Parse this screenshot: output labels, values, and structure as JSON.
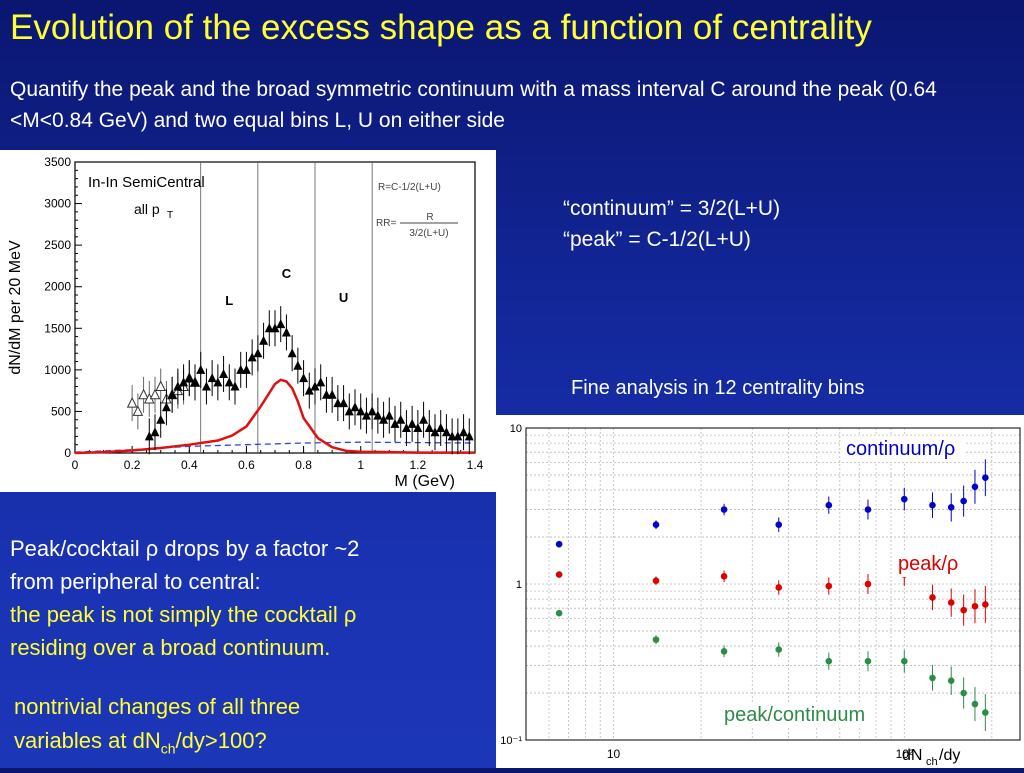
{
  "slide": {
    "title": "Evolution of the excess shape as a function of centrality",
    "intro": "Quantify the peak and the broad symmetric continuum with a mass interval C around the peak (0.64 <M<0.84 GeV) and two equal bins L, U on either side",
    "definitions": {
      "continuum": "“continuum” = 3/2(L+U)",
      "peak": "“peak” = C-1/2(L+U)"
    },
    "fine_analysis": "Fine analysis in 12 centrality bins",
    "para1": {
      "line1": "Peak/cocktail ρ drops by a factor ~2",
      "line2": "from peripheral to central:",
      "line3": "the peak is not simply the cocktail ρ",
      "line4": "residing over a broad continuum."
    },
    "para2": {
      "line1": "nontrivial changes of all three",
      "line2_pre": "variables at dN",
      "line2_sub": "ch",
      "line2_post": "/dy>100?"
    }
  },
  "chart_data": [
    {
      "type": "scatter",
      "title": "",
      "label_main": "In-In SemiCentral",
      "label_sub": "all p",
      "label_sub_subscript": "T",
      "xlabel": "M (GeV)",
      "ylabel": "dN/dM per 20 MeV",
      "xlim": [
        0,
        1.4
      ],
      "ylim": [
        0,
        3500
      ],
      "xticks": [
        "0",
        "0.2",
        "0.4",
        "0.6",
        "0.8",
        "1",
        "1.2",
        "1.4"
      ],
      "yticks": [
        "0",
        "500",
        "1000",
        "1500",
        "2000",
        "2500",
        "3000",
        "3500"
      ],
      "regions": [
        "L",
        "C",
        "U"
      ],
      "region_bounds": [
        0.44,
        0.64,
        0.84,
        1.04
      ],
      "formula_R": "R=C-1/2(L+U)",
      "formula_RR_lhs": "RR=",
      "formula_RR_num": "R",
      "formula_RR_den": "3/2(L+U)",
      "series": [
        {
          "marker": "filled-triangle",
          "x": [
            0.26,
            0.28,
            0.3,
            0.32,
            0.34,
            0.36,
            0.38,
            0.4,
            0.42,
            0.44,
            0.46,
            0.48,
            0.5,
            0.52,
            0.54,
            0.56,
            0.58,
            0.6,
            0.62,
            0.64,
            0.66,
            0.68,
            0.7,
            0.72,
            0.74,
            0.76,
            0.78,
            0.8,
            0.82,
            0.84,
            0.86,
            0.88,
            0.9,
            0.92,
            0.94,
            0.96,
            0.98,
            1.0,
            1.02,
            1.04,
            1.06,
            1.08,
            1.1,
            1.12,
            1.14,
            1.16,
            1.18,
            1.2,
            1.22,
            1.24,
            1.26,
            1.28,
            1.3,
            1.32,
            1.34,
            1.36,
            1.38
          ],
          "y": [
            200,
            250,
            400,
            550,
            700,
            800,
            850,
            900,
            850,
            1000,
            800,
            900,
            850,
            950,
            850,
            800,
            1000,
            1000,
            1150,
            1200,
            1350,
            1500,
            1500,
            1550,
            1450,
            1200,
            1050,
            900,
            750,
            800,
            850,
            700,
            700,
            600,
            600,
            500,
            550,
            500,
            450,
            500,
            450,
            400,
            450,
            350,
            400,
            300,
            350,
            300,
            400,
            300,
            250,
            300,
            250,
            200,
            200,
            250,
            200
          ]
        },
        {
          "marker": "open-triangle",
          "x": [
            0.2,
            0.22,
            0.24,
            0.26,
            0.28,
            0.3,
            0.32,
            0.34,
            0.36,
            0.38,
            0.4,
            0.42
          ],
          "y": [
            600,
            500,
            700,
            650,
            700,
            800,
            650,
            700,
            750,
            800,
            900,
            850
          ]
        },
        {
          "name": "",
          "marker": "red-line",
          "x": [
            0,
            0.1,
            0.2,
            0.3,
            0.4,
            0.5,
            0.55,
            0.6,
            0.65,
            0.7,
            0.72,
            0.74,
            0.76,
            0.78,
            0.8,
            0.85,
            0.9,
            0.95,
            1.0,
            1.1,
            1.2,
            1.3,
            1.4
          ],
          "y": [
            0,
            10,
            30,
            60,
            100,
            150,
            210,
            320,
            560,
            830,
            880,
            860,
            780,
            620,
            420,
            180,
            70,
            25,
            15,
            10,
            5,
            5,
            5
          ]
        },
        {
          "name": "",
          "marker": "blue-dashed",
          "x": [
            0,
            0.2,
            0.4,
            0.6,
            0.8,
            1.0,
            1.2,
            1.4
          ],
          "y": [
            10,
            40,
            80,
            100,
            120,
            130,
            125,
            120
          ]
        }
      ]
    },
    {
      "type": "scatter",
      "title": "",
      "xlabel_pre": "dN",
      "xlabel_sub": "ch",
      "xlabel_post": "/dy",
      "xscale": "log",
      "yscale": "log",
      "xlim": [
        5,
        250
      ],
      "ylim": [
        0.1,
        10
      ],
      "xticks": [
        "10",
        "10²"
      ],
      "yticks": [
        "10",
        "1",
        "10⁻¹"
      ],
      "x": [
        6.5,
        14,
        24,
        37,
        55,
        75,
        100,
        125,
        145,
        160,
        175,
        190
      ],
      "series": [
        {
          "name": "continuum/ρ",
          "color": "#0000cc",
          "values": [
            1.8,
            2.4,
            3.0,
            2.4,
            3.2,
            3.0,
            3.5,
            3.2,
            3.1,
            3.4,
            4.2,
            4.8
          ]
        },
        {
          "name": "peak/ρ",
          "color": "#dd0000",
          "values": [
            1.15,
            1.05,
            1.12,
            0.95,
            0.97,
            1.0,
            1.15,
            0.82,
            0.76,
            0.68,
            0.72,
            0.74
          ]
        },
        {
          "name": "peak/continuum",
          "color": "#2e8b4a",
          "values": [
            0.65,
            0.44,
            0.37,
            0.38,
            0.32,
            0.32,
            0.32,
            0.25,
            0.24,
            0.2,
            0.17,
            0.15
          ]
        }
      ]
    }
  ]
}
